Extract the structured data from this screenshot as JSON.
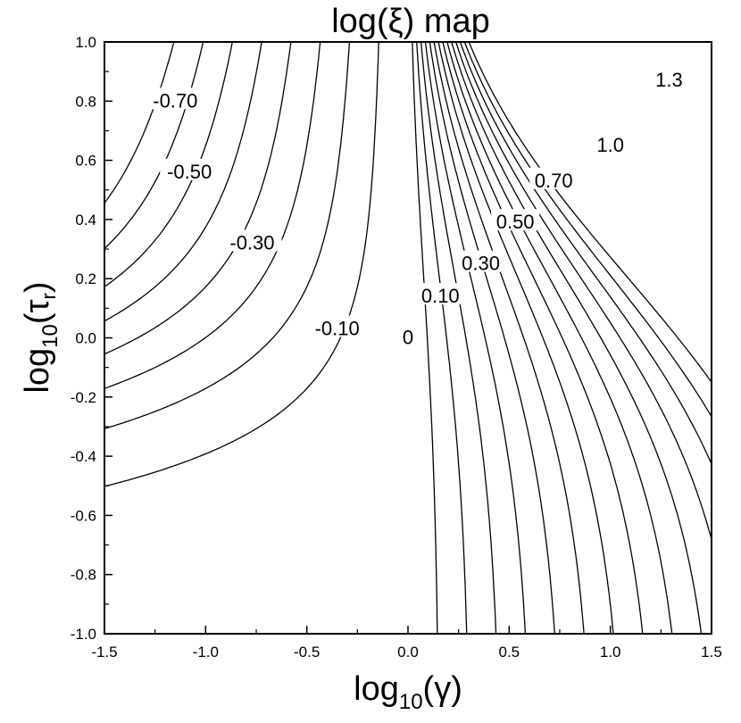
{
  "chart_data": {
    "type": "contour",
    "title": "log(ξ) map",
    "xlabel_base": "log",
    "xlabel_sub": "10",
    "xlabel_arg": "(γ)",
    "ylabel_base": "log",
    "ylabel_sub": "10",
    "ylabel_arg_open": "(τ",
    "ylabel_arg_sub": "r",
    "ylabel_arg_close": ")",
    "xlim": [
      -1.5,
      1.5
    ],
    "ylim": [
      -1.0,
      1.0
    ],
    "x_ticks": [
      "-1.5",
      "-1.0",
      "-0.5",
      "0.0",
      "0.5",
      "1.0",
      "1.5"
    ],
    "y_ticks": [
      "-1.0",
      "-0.8",
      "-0.6",
      "-0.4",
      "-0.2",
      "0.0",
      "0.2",
      "0.4",
      "0.6",
      "0.8",
      "1.0"
    ],
    "grid": false,
    "contour_levels": [
      -0.8,
      -0.7,
      -0.6,
      -0.5,
      -0.4,
      -0.3,
      -0.2,
      -0.1,
      0,
      0.1,
      0.2,
      0.3,
      0.4,
      0.5,
      0.6,
      0.7,
      0.8,
      0.9,
      1.0,
      1.1,
      1.2,
      1.3,
      1.4
    ],
    "contour_labels": [
      {
        "text": "-0.70",
        "x": -1.15,
        "y": 0.8
      },
      {
        "text": "-0.50",
        "x": -1.08,
        "y": 0.56
      },
      {
        "text": "-0.30",
        "x": -0.77,
        "y": 0.32
      },
      {
        "text": "-0.10",
        "x": -0.35,
        "y": 0.03
      },
      {
        "text": "0",
        "x": 0.0,
        "y": 0.0
      },
      {
        "text": "0.10",
        "x": 0.16,
        "y": 0.14
      },
      {
        "text": "0.30",
        "x": 0.36,
        "y": 0.25
      },
      {
        "text": "0.50",
        "x": 0.53,
        "y": 0.39
      },
      {
        "text": "0.70",
        "x": 0.72,
        "y": 0.53
      },
      {
        "text": "1.0",
        "x": 1.0,
        "y": 0.65
      },
      {
        "text": "1.3",
        "x": 1.29,
        "y": 0.87
      }
    ]
  }
}
